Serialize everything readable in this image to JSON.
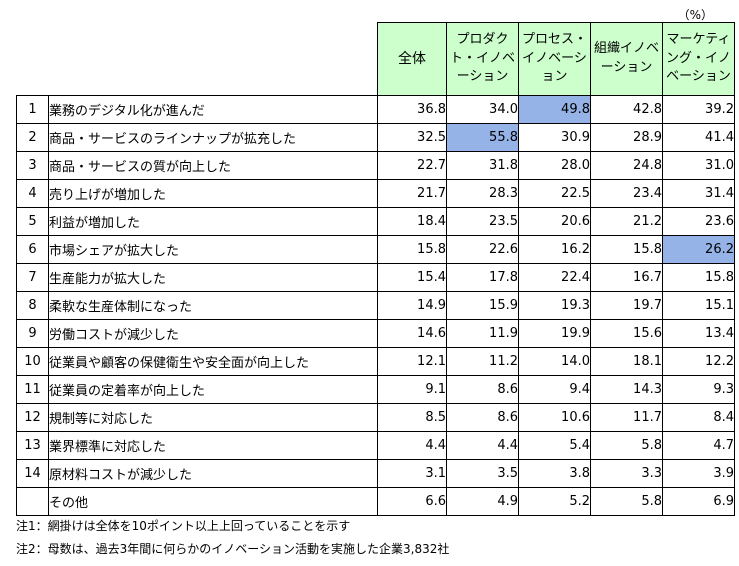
{
  "unit_label": "（%）",
  "columns": [
    "全体",
    "プロダクト・イノベーション",
    "プロセス・イノベーション",
    "組織イノベーション",
    "マーケティング・イノベーション"
  ],
  "rows": [
    {
      "no": "1",
      "label": "業務のデジタル化が進んだ",
      "values": [
        "36.8",
        "34.0",
        "49.8",
        "42.8",
        "39.2"
      ],
      "highlight": [
        2
      ]
    },
    {
      "no": "2",
      "label": "商品・サービスのラインナップが拡充した",
      "values": [
        "32.5",
        "55.8",
        "30.9",
        "28.9",
        "41.4"
      ],
      "highlight": [
        1
      ]
    },
    {
      "no": "3",
      "label": "商品・サービスの質が向上した",
      "values": [
        "22.7",
        "31.8",
        "28.0",
        "24.8",
        "31.0"
      ],
      "highlight": []
    },
    {
      "no": "4",
      "label": "売り上げが増加した",
      "values": [
        "21.7",
        "28.3",
        "22.5",
        "23.4",
        "31.4"
      ],
      "highlight": []
    },
    {
      "no": "5",
      "label": "利益が増加した",
      "values": [
        "18.4",
        "23.5",
        "20.6",
        "21.2",
        "23.6"
      ],
      "highlight": []
    },
    {
      "no": "6",
      "label": "市場シェアが拡大した",
      "values": [
        "15.8",
        "22.6",
        "16.2",
        "15.8",
        "26.2"
      ],
      "highlight": [
        4
      ]
    },
    {
      "no": "7",
      "label": "生産能力が拡大した",
      "values": [
        "15.4",
        "17.8",
        "22.4",
        "16.7",
        "15.8"
      ],
      "highlight": []
    },
    {
      "no": "8",
      "label": "柔軟な生産体制になった",
      "values": [
        "14.9",
        "15.9",
        "19.3",
        "19.7",
        "15.1"
      ],
      "highlight": []
    },
    {
      "no": "9",
      "label": "労働コストが減少した",
      "values": [
        "14.6",
        "11.9",
        "19.9",
        "15.6",
        "13.4"
      ],
      "highlight": []
    },
    {
      "no": "10",
      "label": "従業員や顧客の保健衛生や安全面が向上した",
      "values": [
        "12.1",
        "11.2",
        "14.0",
        "18.1",
        "12.2"
      ],
      "highlight": []
    },
    {
      "no": "11",
      "label": "従業員の定着率が向上した",
      "values": [
        "9.1",
        "8.6",
        "9.4",
        "14.3",
        "9.3"
      ],
      "highlight": []
    },
    {
      "no": "12",
      "label": "規制等に対応した",
      "values": [
        "8.5",
        "8.6",
        "10.6",
        "11.7",
        "8.4"
      ],
      "highlight": []
    },
    {
      "no": "13",
      "label": "業界標準に対応した",
      "values": [
        "4.4",
        "4.4",
        "5.4",
        "5.8",
        "4.7"
      ],
      "highlight": []
    },
    {
      "no": "14",
      "label": "原材料コストが減少した",
      "values": [
        "3.1",
        "3.5",
        "3.8",
        "3.3",
        "3.9"
      ],
      "highlight": []
    },
    {
      "no": "",
      "label": "その他",
      "values": [
        "6.6",
        "4.9",
        "5.2",
        "5.8",
        "6.9"
      ],
      "highlight": []
    }
  ],
  "notes": [
    "注1：網掛けは全体を10ポイント以上上回っていることを示す",
    "注2：母数は、過去3年間に何らかのイノベーション活動を実施した企業3,832社"
  ],
  "colors": {
    "header_bg": "#ccffcc",
    "highlight_bg": "#95b3e7"
  }
}
